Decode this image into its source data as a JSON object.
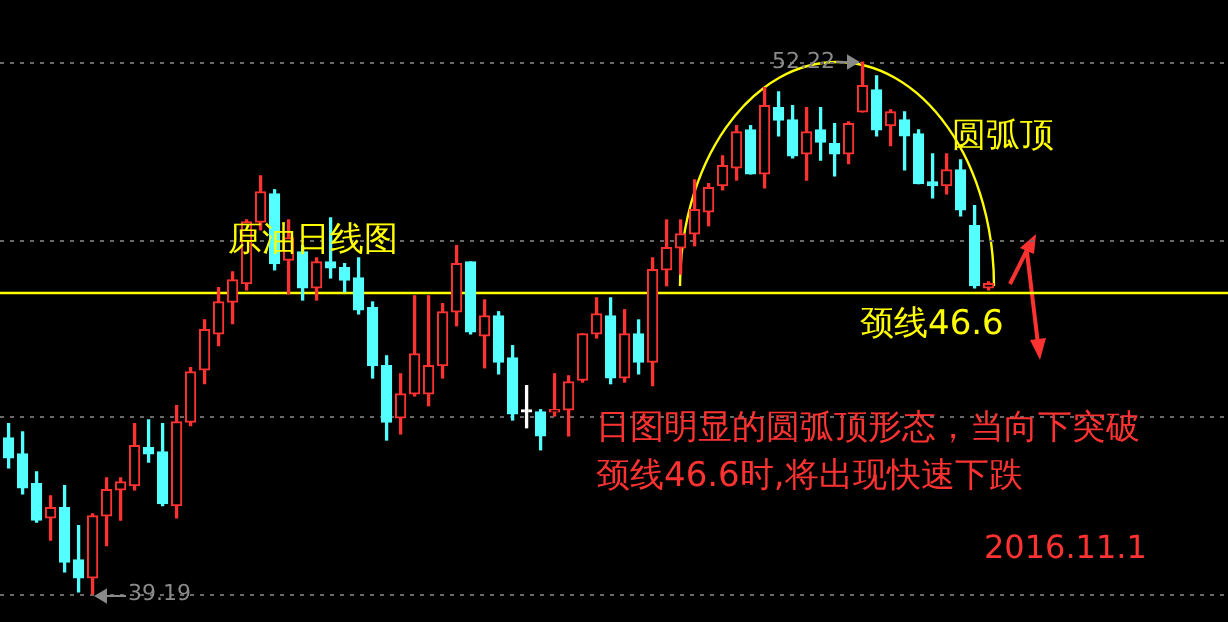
{
  "chart_data": {
    "type": "candlestick",
    "title": "原油日线图",
    "categories": [
      null,
      null,
      null,
      null,
      null,
      null,
      null,
      null,
      null,
      null,
      null,
      null,
      null,
      null,
      null,
      null,
      null,
      null,
      null,
      null,
      null,
      null,
      null,
      null,
      null,
      null,
      null,
      null,
      null,
      null,
      null,
      null,
      null,
      null,
      null,
      null,
      null,
      null,
      null,
      null,
      null,
      null,
      null,
      null,
      null,
      null,
      null,
      null,
      null,
      null,
      null,
      null,
      null,
      null,
      null,
      null,
      null,
      null,
      null,
      null,
      null,
      null,
      null,
      null,
      null,
      null,
      null,
      null,
      null,
      null,
      null
    ],
    "ohlc": [
      [
        43.01,
        43.36,
        42.28,
        42.52
      ],
      [
        42.62,
        43.16,
        41.64,
        41.79
      ],
      [
        41.89,
        42.18,
        40.95,
        41.0
      ],
      [
        41.05,
        41.59,
        40.51,
        41.3
      ],
      [
        41.3,
        41.84,
        39.73,
        39.97
      ],
      [
        40.02,
        40.86,
        39.24,
        39.58
      ],
      [
        39.58,
        41.15,
        39.19,
        41.1
      ],
      [
        41.1,
        42.03,
        40.37,
        41.74
      ],
      [
        41.74,
        42.03,
        41.0,
        41.93
      ],
      [
        41.84,
        43.36,
        41.74,
        42.82
      ],
      [
        42.77,
        43.45,
        42.42,
        42.62
      ],
      [
        42.67,
        43.36,
        41.35,
        41.4
      ],
      [
        41.35,
        43.8,
        41.05,
        43.4
      ],
      [
        43.4,
        44.73,
        43.31,
        44.63
      ],
      [
        44.68,
        45.9,
        44.34,
        45.66
      ],
      [
        45.56,
        46.69,
        45.27,
        46.34
      ],
      [
        46.34,
        47.08,
        45.81,
        46.88
      ],
      [
        46.79,
        48.35,
        46.64,
        48.3
      ],
      [
        48.3,
        49.43,
        48.11,
        49.04
      ],
      [
        48.99,
        49.09,
        47.13,
        47.28
      ],
      [
        47.37,
        48.35,
        46.54,
        47.91
      ],
      [
        47.57,
        47.72,
        46.39,
        46.69
      ],
      [
        46.69,
        47.42,
        46.39,
        47.32
      ],
      [
        47.32,
        48.4,
        46.93,
        47.18
      ],
      [
        47.18,
        47.28,
        46.59,
        46.88
      ],
      [
        46.93,
        47.42,
        46.05,
        46.15
      ],
      [
        46.2,
        46.34,
        44.48,
        44.78
      ],
      [
        44.78,
        45.02,
        42.96,
        43.4
      ],
      [
        43.5,
        44.58,
        43.11,
        44.09
      ],
      [
        44.09,
        46.49,
        44.04,
        45.07
      ],
      [
        44.09,
        46.49,
        43.8,
        44.78
      ],
      [
        44.78,
        46.3,
        44.48,
        46.1
      ],
      [
        46.1,
        47.72,
        45.76,
        47.28
      ],
      [
        47.32,
        47.32,
        45.56,
        45.61
      ],
      [
        45.51,
        46.39,
        44.73,
        46.0
      ],
      [
        46.0,
        46.1,
        44.58,
        44.87
      ],
      [
        44.97,
        45.27,
        43.45,
        43.6
      ],
      [
        43.65,
        44.29,
        43.26,
        43.65
      ],
      [
        43.65,
        43.7,
        42.72,
        43.06
      ],
      [
        43.65,
        44.58,
        43.55,
        43.7
      ],
      [
        43.7,
        44.53,
        43.06,
        44.38
      ],
      [
        44.43,
        45.56,
        44.38,
        45.56
      ],
      [
        45.56,
        46.44,
        45.46,
        46.05
      ],
      [
        46.0,
        46.44,
        44.34,
        44.48
      ],
      [
        44.48,
        46.15,
        44.38,
        45.56
      ],
      [
        45.56,
        45.9,
        44.58,
        44.87
      ],
      [
        44.87,
        47.42,
        44.29,
        47.13
      ],
      [
        47.13,
        48.35,
        46.74,
        47.67
      ],
      [
        47.67,
        48.35,
        47.03,
        48.01
      ],
      [
        48.01,
        49.33,
        47.72,
        48.6
      ],
      [
        48.55,
        49.24,
        48.21,
        49.14
      ],
      [
        49.19,
        49.92,
        49.09,
        49.68
      ],
      [
        49.63,
        50.66,
        49.33,
        50.51
      ],
      [
        50.56,
        50.66,
        49.48,
        49.48
      ],
      [
        49.48,
        51.59,
        49.14,
        51.15
      ],
      [
        51.1,
        51.49,
        50.41,
        50.8
      ],
      [
        50.8,
        51.15,
        49.87,
        49.92
      ],
      [
        49.97,
        51.1,
        49.33,
        50.51
      ],
      [
        50.56,
        51.1,
        49.82,
        50.26
      ],
      [
        50.22,
        50.71,
        49.43,
        49.97
      ],
      [
        49.97,
        50.75,
        49.73,
        50.71
      ],
      [
        51.0,
        52.22,
        51.0,
        51.64
      ],
      [
        51.54,
        51.88,
        50.41,
        50.56
      ],
      [
        50.66,
        51.05,
        50.17,
        51.0
      ],
      [
        50.8,
        51.0,
        49.58,
        50.41
      ],
      [
        50.46,
        50.56,
        49.24,
        49.24
      ],
      [
        49.28,
        49.97,
        48.89,
        49.19
      ],
      [
        49.19,
        49.97,
        48.99,
        49.58
      ],
      [
        49.58,
        49.82,
        48.45,
        48.6
      ],
      [
        48.21,
        48.7,
        46.69,
        46.74
      ],
      [
        46.69,
        46.83,
        46.64,
        46.79
      ]
    ],
    "ylim": [
      38.5,
      53.74
    ],
    "yticks": [
      {
        "value": 39.19,
        "label": null
      },
      {
        "value": 43.53,
        "label": null
      },
      {
        "value": 47.88,
        "label": null
      },
      {
        "value": 52.22,
        "label": null
      }
    ],
    "grid": "y",
    "ref_lines": [
      {
        "axis": "y",
        "value": 46.6,
        "label": "颈线46.6",
        "color": "#ffff00"
      }
    ],
    "annotations": [
      "圆弧顶",
      "日图明显的圆弧顶形态，当向下突破颈线46.6时,将出现快速下跌",
      "2016.11.1",
      "52.22",
      "39.19"
    ]
  }
}
